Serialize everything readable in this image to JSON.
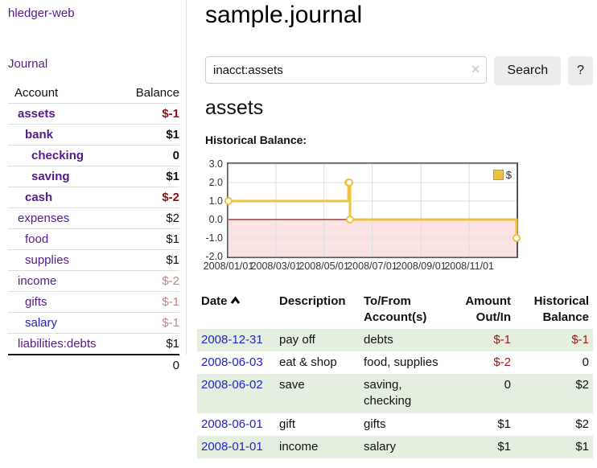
{
  "app": {
    "title": "hledger-web"
  },
  "sidebar": {
    "journal_link": "Journal",
    "accounts_table": {
      "headers": {
        "account": "Account",
        "balance": "Balance"
      },
      "rows": [
        {
          "name": "assets",
          "balance": "$-1",
          "level": 1,
          "selected": true
        },
        {
          "name": "bank",
          "balance": "$1",
          "level": 2,
          "selected": true
        },
        {
          "name": "checking",
          "balance": "0",
          "level": 3,
          "selected": true
        },
        {
          "name": "saving",
          "balance": "$1",
          "level": 3,
          "selected": true
        },
        {
          "name": "cash",
          "balance": "$-2",
          "level": 2,
          "selected": true
        },
        {
          "name": "expenses",
          "balance": "$2",
          "level": 1
        },
        {
          "name": "food",
          "balance": "$1",
          "level": 2
        },
        {
          "name": "supplies",
          "balance": "$1",
          "level": 2
        },
        {
          "name": "income",
          "balance": "$-2",
          "level": 1
        },
        {
          "name": "gifts",
          "balance": "$-1",
          "level": 2
        },
        {
          "name": "salary",
          "balance": "$-1",
          "level": 2,
          "link_style": "blue"
        },
        {
          "name": "liabilities:debts",
          "balance": "$1",
          "level": 1
        }
      ],
      "total": "0"
    }
  },
  "header": {
    "title": "sample.journal"
  },
  "search": {
    "value": "inacct:assets",
    "clear_icon": "×",
    "search_label": "Search",
    "help_label": "?"
  },
  "account_page": {
    "heading": "assets",
    "chart_label": "Historical Balance:"
  },
  "chart_data": {
    "type": "line",
    "title": "Historical Balance:",
    "x_type": "date",
    "xlim": [
      "2008-01-01",
      "2008-12-31"
    ],
    "ylim": [
      -2,
      3
    ],
    "yticks": [
      "3.0",
      "2.0",
      "1.0",
      "0.0",
      "-1.0",
      "-2.0"
    ],
    "xticks": [
      {
        "date": "2008-01-01",
        "label": "2008/01/01"
      },
      {
        "date": "2008-03-01",
        "label": "2008/03/01"
      },
      {
        "date": "2008-05-01",
        "label": "2008/05/01"
      },
      {
        "date": "2008-07-01",
        "label": "2008/07/01"
      },
      {
        "date": "2008-09-01",
        "label": "2008/09/01"
      },
      {
        "date": "2008-11-01",
        "label": "2008/11/01"
      }
    ],
    "series": [
      {
        "name": "$",
        "color": "#edc240",
        "type": "step",
        "points": [
          {
            "date": "2008-01-01",
            "value": 1
          },
          {
            "date": "2008-06-01",
            "value": 2
          },
          {
            "date": "2008-06-02",
            "value": 2
          },
          {
            "date": "2008-06-03",
            "value": 0
          },
          {
            "date": "2008-12-31",
            "value": -1
          }
        ]
      }
    ],
    "negative_fill": "#fbe3e3",
    "zero_line_color": "#991515",
    "grid_color": "#dcdcdc",
    "legend_position": "top-right",
    "grid": true
  },
  "register_table": {
    "headers": {
      "date": "Date",
      "description": "Description",
      "accounts": "To/From Account(s)",
      "amount": "Amount Out/In",
      "balance": "Historical Balance"
    },
    "rows": [
      {
        "date": "2008-12-31",
        "description": "pay off",
        "accounts": "debts",
        "amount": "$-1",
        "balance": "$-1"
      },
      {
        "date": "2008-06-03",
        "description": "eat & shop",
        "accounts": "food, supplies",
        "amount": "$-2",
        "balance": "0"
      },
      {
        "date": "2008-06-02",
        "description": "save",
        "accounts": "saving, checking",
        "amount": "0",
        "balance": "$2"
      },
      {
        "date": "2008-06-01",
        "description": "gift",
        "accounts": "gifts",
        "amount": "$1",
        "balance": "$2"
      },
      {
        "date": "2008-01-01",
        "description": "income",
        "accounts": "salary",
        "amount": "$1",
        "balance": "$1"
      }
    ]
  }
}
